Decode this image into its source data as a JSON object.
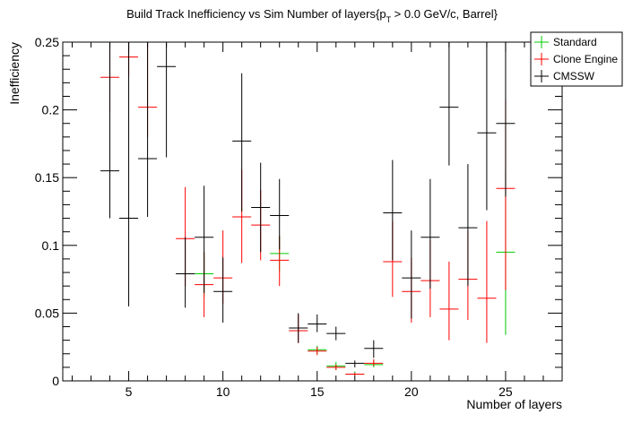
{
  "chart_data": {
    "type": "scatter",
    "title_main": "Build Track Inefficiency vs Sim Number of layers{p",
    "title_sub": "T",
    "title_rest": " > 0.0 GeV/c, Barrel}",
    "xlabel": "Number of layers",
    "ylabel": "Inefficiency",
    "xlim": [
      1.5,
      28.0
    ],
    "ylim": [
      0,
      0.25
    ],
    "x_ticks": [
      5,
      10,
      15,
      20,
      25
    ],
    "y_ticks": [
      0,
      0.05,
      0.1,
      0.15,
      0.2,
      0.25
    ],
    "x_tick_labels": [
      "5",
      "10",
      "15",
      "20",
      "25"
    ],
    "y_tick_labels": [
      "0",
      "0.05",
      "0.1",
      "0.15",
      "0.2",
      "0.25"
    ],
    "grid": false,
    "legend_position": "top-right",
    "series": [
      {
        "name": "Standard",
        "color": "#00cc00",
        "points": [
          {
            "x": 9,
            "y": 0.079,
            "lo": 0.062,
            "hi": 0.095
          },
          {
            "x": 13,
            "y": 0.094,
            "lo": 0.081,
            "hi": 0.107
          },
          {
            "x": 15,
            "y": 0.023,
            "lo": 0.02,
            "hi": 0.026
          },
          {
            "x": 16,
            "y": 0.011,
            "lo": 0.008,
            "hi": 0.014
          },
          {
            "x": 17,
            "y": 0.005,
            "lo": 0.004,
            "hi": 0.007
          },
          {
            "x": 18,
            "y": 0.012,
            "lo": 0.01,
            "hi": 0.015
          },
          {
            "x": 25,
            "y": 0.095,
            "lo": 0.034,
            "hi": 0.155
          }
        ]
      },
      {
        "name": "Clone Engine",
        "color": "#ff0000",
        "points": [
          {
            "x": 4,
            "y": 0.224,
            "lo": 0.198,
            "hi": 0.25
          },
          {
            "x": 5,
            "y": 0.239,
            "lo": 0.225,
            "hi": 0.25
          },
          {
            "x": 6,
            "y": 0.202,
            "lo": 0.18,
            "hi": 0.25
          },
          {
            "x": 8,
            "y": 0.105,
            "lo": 0.07,
            "hi": 0.143
          },
          {
            "x": 9,
            "y": 0.071,
            "lo": 0.047,
            "hi": 0.095
          },
          {
            "x": 10,
            "y": 0.076,
            "lo": 0.057,
            "hi": 0.111
          },
          {
            "x": 11,
            "y": 0.121,
            "lo": 0.087,
            "hi": 0.156
          },
          {
            "x": 12,
            "y": 0.115,
            "lo": 0.089,
            "hi": 0.141
          },
          {
            "x": 13,
            "y": 0.089,
            "lo": 0.07,
            "hi": 0.107
          },
          {
            "x": 14,
            "y": 0.037,
            "lo": 0.028,
            "hi": 0.049
          },
          {
            "x": 15,
            "y": 0.022,
            "lo": 0.019,
            "hi": 0.025
          },
          {
            "x": 16,
            "y": 0.01,
            "lo": 0.008,
            "hi": 0.012
          },
          {
            "x": 17,
            "y": 0.005,
            "lo": 0.004,
            "hi": 0.006
          },
          {
            "x": 18,
            "y": 0.013,
            "lo": 0.011,
            "hi": 0.016
          },
          {
            "x": 19,
            "y": 0.088,
            "lo": 0.062,
            "hi": 0.118
          },
          {
            "x": 20,
            "y": 0.066,
            "lo": 0.043,
            "hi": 0.091
          },
          {
            "x": 21,
            "y": 0.074,
            "lo": 0.047,
            "hi": 0.104
          },
          {
            "x": 22,
            "y": 0.053,
            "lo": 0.03,
            "hi": 0.088
          },
          {
            "x": 23,
            "y": 0.075,
            "lo": 0.045,
            "hi": 0.111
          },
          {
            "x": 24,
            "y": 0.061,
            "lo": 0.028,
            "hi": 0.118
          },
          {
            "x": 25,
            "y": 0.142,
            "lo": 0.067,
            "hi": 0.208
          }
        ]
      },
      {
        "name": "CMSSW",
        "color": "#000000",
        "points": [
          {
            "x": 4,
            "y": 0.155,
            "lo": 0.12,
            "hi": 0.25
          },
          {
            "x": 5,
            "y": 0.12,
            "lo": 0.055,
            "hi": 0.25
          },
          {
            "x": 6,
            "y": 0.164,
            "lo": 0.121,
            "hi": 0.25
          },
          {
            "x": 7,
            "y": 0.232,
            "lo": 0.165,
            "hi": 0.25
          },
          {
            "x": 8,
            "y": 0.079,
            "lo": 0.054,
            "hi": 0.106
          },
          {
            "x": 9,
            "y": 0.106,
            "lo": 0.065,
            "hi": 0.144
          },
          {
            "x": 10,
            "y": 0.066,
            "lo": 0.043,
            "hi": 0.091
          },
          {
            "x": 11,
            "y": 0.177,
            "lo": 0.125,
            "hi": 0.227
          },
          {
            "x": 12,
            "y": 0.128,
            "lo": 0.095,
            "hi": 0.161
          },
          {
            "x": 13,
            "y": 0.122,
            "lo": 0.097,
            "hi": 0.149
          },
          {
            "x": 14,
            "y": 0.039,
            "lo": 0.028,
            "hi": 0.05
          },
          {
            "x": 15,
            "y": 0.042,
            "lo": 0.036,
            "hi": 0.049
          },
          {
            "x": 16,
            "y": 0.035,
            "lo": 0.03,
            "hi": 0.04
          },
          {
            "x": 17,
            "y": 0.013,
            "lo": 0.01,
            "hi": 0.015
          },
          {
            "x": 18,
            "y": 0.024,
            "lo": 0.017,
            "hi": 0.03
          },
          {
            "x": 19,
            "y": 0.124,
            "lo": 0.089,
            "hi": 0.163
          },
          {
            "x": 20,
            "y": 0.076,
            "lo": 0.046,
            "hi": 0.111
          },
          {
            "x": 21,
            "y": 0.106,
            "lo": 0.068,
            "hi": 0.149
          },
          {
            "x": 22,
            "y": 0.202,
            "lo": 0.159,
            "hi": 0.25
          },
          {
            "x": 23,
            "y": 0.113,
            "lo": 0.07,
            "hi": 0.16
          },
          {
            "x": 24,
            "y": 0.183,
            "lo": 0.126,
            "hi": 0.25
          },
          {
            "x": 25,
            "y": 0.19,
            "lo": 0.136,
            "hi": 0.25
          }
        ]
      }
    ]
  }
}
